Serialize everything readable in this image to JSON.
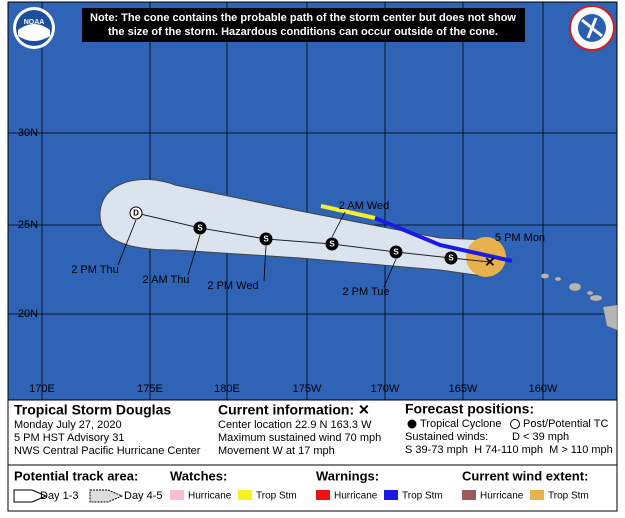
{
  "header": {
    "note": [
      "Note: The cone contains the probable path of the storm center but does not show",
      "the size of the storm. Hazardous conditions can occur outside of the cone."
    ],
    "logo_left": "NOAA"
  },
  "map": {
    "lat_labels": [
      "30N",
      "25N",
      "20N"
    ],
    "lon_labels": [
      "170E",
      "175E",
      "180E",
      "175W",
      "170W",
      "165W",
      "160W"
    ],
    "points": [
      "D",
      "S",
      "S",
      "S",
      "S",
      "S"
    ],
    "track_labels": [
      "2 PM Thu",
      "2 AM Thu",
      "2 PM Wed",
      "2 AM Wed",
      "2 PM Tue",
      "5 PM Mon"
    ]
  },
  "info": {
    "storm": "Tropical Storm Douglas",
    "date": "Monday July 27, 2020",
    "advisory": "5 PM HST Advisory 31",
    "center": "NWS Central Pacific Hurricane Center",
    "current_heading": "Current information: ✕",
    "current_lines": [
      "Center location 22.9 N 163.3 W",
      "Maximum sustained wind 70 mph",
      "Movement W at 17 mph"
    ],
    "forecast_heading": "Forecast positions:",
    "tc": "Tropical Cyclone",
    "ptc": "Post/Potential TC",
    "winds_heading": "Sustained winds:",
    "d_wind": "D < 39 mph",
    "s_h_m": "S 39-73 mph  H 74-110 mph  M > 110 mph"
  },
  "legend": {
    "track_heading": "Potential track area:",
    "day13": "Day 1-3",
    "day45": "Day 4-5",
    "watches_heading": "Watches:",
    "watch_hurricane": "Hurricane",
    "watch_ts": "Trop Stm",
    "warnings_heading": "Warnings:",
    "warn_hurricane": "Hurricane",
    "warn_ts": "Trop Stm",
    "wind_heading": "Current wind extent:",
    "wind_hurricane": "Hurricane",
    "wind_ts": "Trop Stm"
  }
}
